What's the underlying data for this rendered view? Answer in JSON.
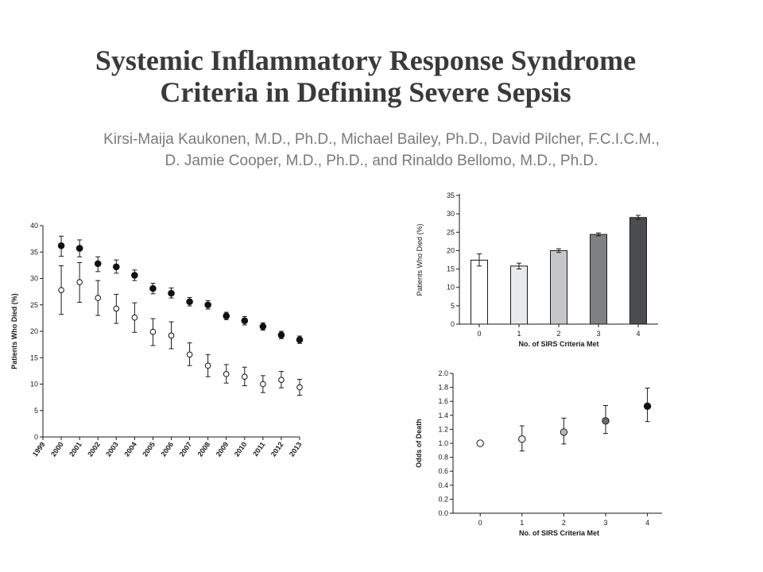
{
  "header": {
    "title_line1": "Systemic Inflammatory Response Syndrome",
    "title_line2": "Criteria in Defining Severe Sepsis",
    "authors_line1": "Kirsi-Maija Kaukonen, M.D., Ph.D., Michael Bailey, Ph.D., David Pilcher, F.C.I.C.M.,",
    "authors_line2": "D. Jamie Cooper, M.D., Ph.D., and Rinaldo Bellomo, M.D., Ph.D."
  },
  "chart_data": [
    {
      "type": "scatter",
      "title": "",
      "xlabel": "",
      "ylabel": "Patients Who Died (%)",
      "x": [
        "1999",
        "2000",
        "2001",
        "2002",
        "2003",
        "2004",
        "2005",
        "2006",
        "2007",
        "2008",
        "2009",
        "2010",
        "2011",
        "2012",
        "2013"
      ],
      "ylim": [
        0,
        40
      ],
      "yticks": [
        0,
        5,
        10,
        15,
        20,
        25,
        30,
        35,
        40
      ],
      "grid": false,
      "series": [
        {
          "marker": "filled-circle",
          "color": "#111111",
          "x": [
            "2000",
            "2001",
            "2002",
            "2003",
            "2004",
            "2005",
            "2006",
            "2007",
            "2008",
            "2009",
            "2010",
            "2011",
            "2012",
            "2013"
          ],
          "values": [
            36.2,
            35.7,
            32.8,
            32.2,
            30.6,
            28.1,
            27.2,
            25.6,
            25.0,
            22.9,
            22.0,
            20.9,
            19.3,
            18.4
          ],
          "err_low": [
            34.2,
            34.1,
            31.3,
            31.0,
            29.6,
            27.1,
            26.3,
            24.8,
            24.2,
            22.2,
            21.2,
            20.2,
            18.6,
            17.7
          ],
          "err_high": [
            38.0,
            37.3,
            34.1,
            33.5,
            31.6,
            29.1,
            28.2,
            26.4,
            25.8,
            23.6,
            22.8,
            21.6,
            20.0,
            19.1
          ]
        },
        {
          "marker": "open-circle",
          "color": "#111111",
          "x": [
            "2000",
            "2001",
            "2002",
            "2003",
            "2004",
            "2005",
            "2006",
            "2007",
            "2008",
            "2009",
            "2010",
            "2011",
            "2012",
            "2013"
          ],
          "values": [
            27.8,
            29.3,
            26.3,
            24.3,
            22.6,
            19.9,
            19.2,
            15.6,
            13.5,
            11.9,
            11.4,
            10.0,
            10.8,
            9.4
          ],
          "err_low": [
            23.2,
            25.5,
            23.0,
            21.5,
            19.8,
            17.3,
            16.7,
            13.5,
            11.4,
            10.2,
            9.7,
            8.4,
            9.3,
            7.9
          ],
          "err_high": [
            32.4,
            33.0,
            29.6,
            27.0,
            25.4,
            22.4,
            21.8,
            17.8,
            15.6,
            13.7,
            13.2,
            11.6,
            12.4,
            10.9
          ]
        }
      ]
    },
    {
      "type": "bar",
      "title": "",
      "xlabel": "No. of SIRS Criteria Met",
      "ylabel": "Patients Who Died (%)",
      "categories": [
        "0",
        "1",
        "2",
        "3",
        "4"
      ],
      "values": [
        17.4,
        15.8,
        20.0,
        24.4,
        29.0
      ],
      "err_low": [
        15.8,
        15.0,
        19.5,
        24.0,
        28.5
      ],
      "err_high": [
        19.1,
        16.6,
        20.5,
        24.8,
        29.6
      ],
      "colors": [
        "#ffffff",
        "#e8eaec",
        "#c4c6c9",
        "#7e8184",
        "#4a4c4f"
      ],
      "ylim": [
        0,
        35
      ],
      "yticks": [
        0,
        5,
        10,
        15,
        20,
        25,
        30,
        35
      ],
      "grid": false
    },
    {
      "type": "scatter",
      "title": "",
      "xlabel": "No. of SIRS Criteria Met",
      "ylabel": "Odds of Death",
      "categories": [
        "0",
        "1",
        "2",
        "3",
        "4"
      ],
      "values": [
        1.0,
        1.06,
        1.16,
        1.32,
        1.53
      ],
      "err_low": [
        1.0,
        0.89,
        0.99,
        1.14,
        1.31
      ],
      "err_high": [
        1.0,
        1.25,
        1.36,
        1.54,
        1.79
      ],
      "colors": [
        "#ffffff",
        "#e8eaec",
        "#b5b7ba",
        "#6a6c6f",
        "#111111"
      ],
      "ylim": [
        0.0,
        2.0
      ],
      "yticks": [
        "0.0",
        "0.2",
        "0.4",
        "0.6",
        "0.8",
        "1.0",
        "1.2",
        "1.4",
        "1.6",
        "1.8",
        "2.0"
      ],
      "grid": false
    }
  ]
}
